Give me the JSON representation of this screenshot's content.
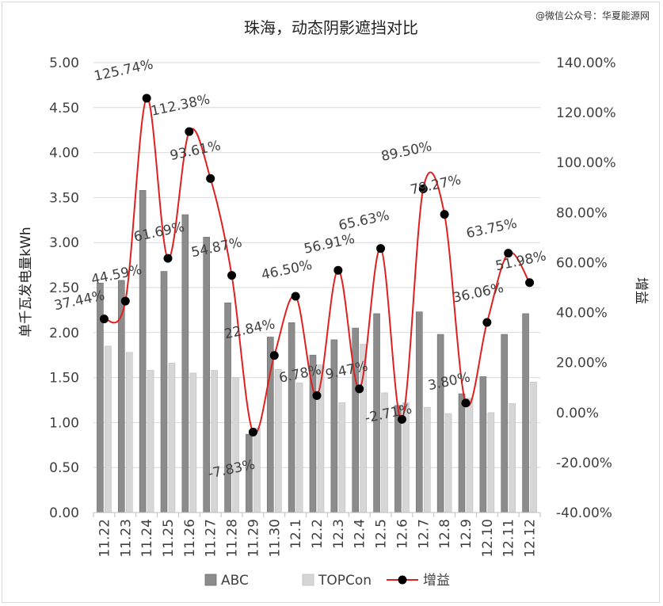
{
  "watermark": "@微信公众号：华夏能源网",
  "chart_data": {
    "type": "bar",
    "title": "珠海，动态阴影遮挡对比",
    "ylabel": "单千瓦发电量kWh",
    "y2label": "增益",
    "ylim": [
      0,
      5
    ],
    "yticks": [
      "0.00",
      "0.50",
      "1.00",
      "1.50",
      "2.00",
      "2.50",
      "3.00",
      "3.50",
      "4.00",
      "4.50",
      "5.00"
    ],
    "y2lim": [
      -40,
      140
    ],
    "y2ticks": [
      "-40.00%",
      "-20.00%",
      "0.00%",
      "20.00%",
      "40.00%",
      "60.00%",
      "80.00%",
      "100.00%",
      "120.00%",
      "140.00%"
    ],
    "categories": [
      "11.22",
      "11.23",
      "11.24",
      "11.25",
      "11.26",
      "11.27",
      "11.28",
      "11.29",
      "11.30",
      "12.1",
      "12.2",
      "12.3",
      "12.4",
      "12.5",
      "12.6",
      "12.7",
      "12.8",
      "12.9",
      "12.10",
      "12.11",
      "12.12"
    ],
    "series": [
      {
        "name": "ABC",
        "kind": "bar",
        "color": "#8c8c8c",
        "values": [
          2.55,
          2.58,
          3.58,
          2.68,
          3.31,
          3.06,
          2.33,
          0.87,
          1.95,
          2.11,
          1.75,
          1.92,
          2.05,
          2.21,
          1.19,
          2.23,
          1.98,
          1.32,
          1.51,
          1.98,
          2.21
        ]
      },
      {
        "name": "TOPCon",
        "kind": "bar",
        "color": "#d6d6d6",
        "values": [
          1.85,
          1.78,
          1.58,
          1.66,
          1.55,
          1.58,
          1.5,
          0.94,
          1.59,
          1.44,
          1.64,
          1.22,
          1.87,
          1.33,
          1.22,
          1.17,
          1.1,
          1.27,
          1.11,
          1.21,
          1.45
        ]
      },
      {
        "name": "增益",
        "kind": "line",
        "axis": "secondary",
        "color": "#e02020",
        "values": [
          37.44,
          44.59,
          125.74,
          61.69,
          112.38,
          93.61,
          54.87,
          -7.83,
          22.84,
          46.5,
          6.78,
          56.91,
          9.47,
          65.63,
          -2.71,
          89.5,
          79.27,
          3.8,
          36.06,
          63.75,
          51.98
        ],
        "labels": [
          "37.44%",
          "44.59%",
          "125.74%",
          "61.69%",
          "112.38%",
          "93.61%",
          "54.87%",
          "-7.83%",
          "22.84%",
          "46.50%",
          "6.78%",
          "56.91%",
          "9.47%",
          "65.63%",
          "-2.71%",
          "89.50%",
          "79.27%",
          "3.80%",
          "36.06%",
          "63.75%",
          "51.98%"
        ]
      }
    ],
    "grid": true,
    "legend": "bottom-center"
  }
}
